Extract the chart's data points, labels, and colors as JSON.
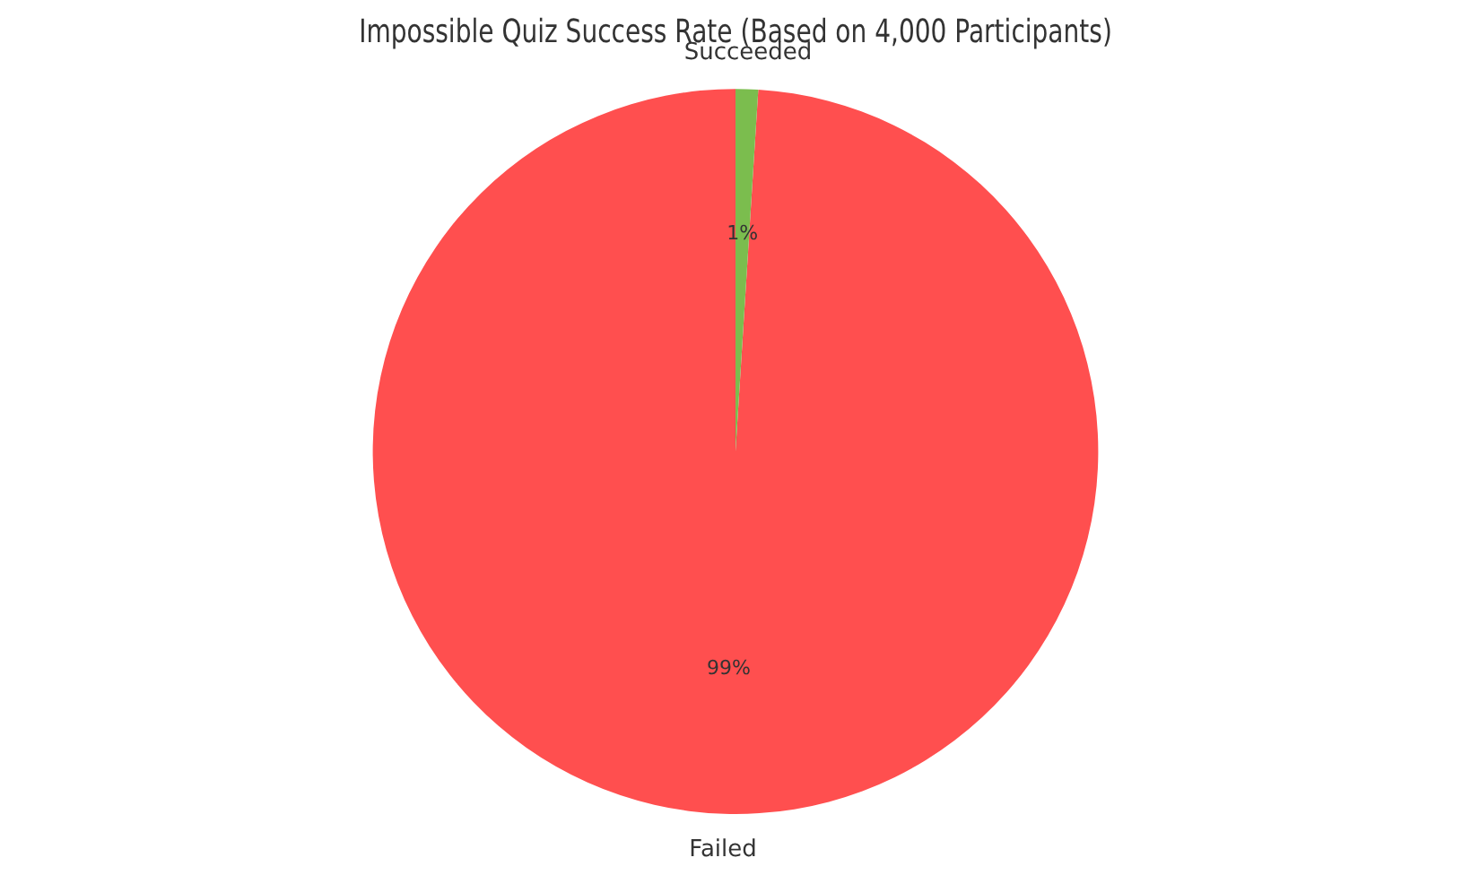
{
  "chart_data": {
    "type": "pie",
    "title": "Impossible Quiz Success Rate (Based on 4,000 Participants)",
    "categories": [
      "Failed",
      "Succeeded"
    ],
    "values": [
      99,
      1
    ],
    "colors": [
      "#ff4f4f",
      "#7bbd4e"
    ],
    "value_labels": [
      "99%",
      "1%"
    ],
    "legend": false
  }
}
